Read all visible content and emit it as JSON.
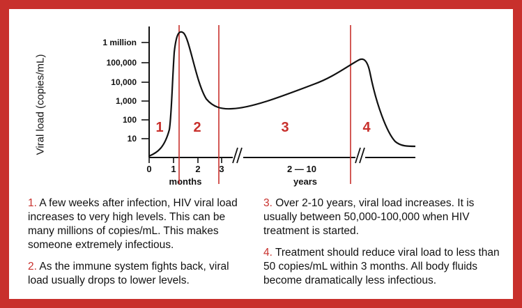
{
  "chart_data": {
    "type": "line",
    "ylabel": "Viral load (copies/mL)",
    "y_scale": "log",
    "y_ticks": [
      "10",
      "100",
      "1,000",
      "10,000",
      "100,000",
      "1 million"
    ],
    "x_ticks": [
      "0",
      "1",
      "2",
      "3",
      "2 — 10"
    ],
    "x_units": [
      "months",
      "years"
    ],
    "phases": [
      "1",
      "2",
      "3",
      "4"
    ],
    "series": [
      {
        "points": [
          {
            "x": "0 months",
            "y": 2
          },
          {
            "x": "0.5 months",
            "y": 5
          },
          {
            "x": "1 month",
            "y": 40
          },
          {
            "x": "1.2 months",
            "y": 300000
          },
          {
            "x": "1.5 months",
            "y": 2000000
          },
          {
            "x": "2 months",
            "y": 200000
          },
          {
            "x": "2.5 months",
            "y": 3000
          },
          {
            "x": "3 months",
            "y": 500
          },
          {
            "x": "2 years",
            "y": 800
          },
          {
            "x": "6 years",
            "y": 10000
          },
          {
            "x": "10 years",
            "y": 100000
          },
          {
            "x": "after treatment",
            "y": 5
          }
        ]
      }
    ]
  },
  "notes": [
    {
      "num": "1.",
      "text": "A few weeks after infection, HIV viral load increases to very high levels. This can be many millions of copies/mL. This makes someone extremely infectious."
    },
    {
      "num": "2.",
      "text": "As the immune system fights back, viral load usually drops to lower levels."
    },
    {
      "num": "3.",
      "text": "Over 2-10 years, viral load increases. It is usually between 50,000-100,000 when HIV treatment is started."
    },
    {
      "num": "4.",
      "text": "Treatment should reduce viral load to less than 50 copies/mL within 3 months. All body fluids become dramatically less infectious."
    }
  ],
  "colors": {
    "frame": "#c8302c",
    "phase": "#c8302c",
    "curve": "#111111"
  }
}
